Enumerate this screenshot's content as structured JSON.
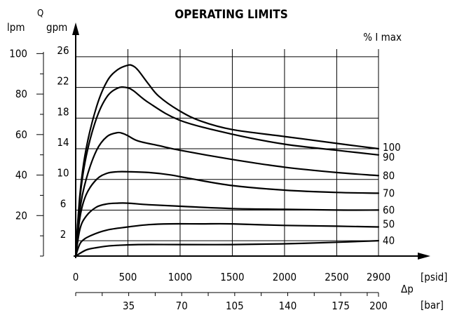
{
  "chart_data": {
    "type": "line",
    "title": "OPERATING LIMITS",
    "ylabel_symbol": "Q",
    "ylabel_lpm": "lpm",
    "ylabel_gpm": "gpm",
    "xlabel_symbol": "Δp",
    "x_unit_psid": "[psid]",
    "x_unit_bar": "[bar]",
    "series_legend_title": "% I max",
    "x_ticks_psid": [
      "0",
      "500",
      "1000",
      "1500",
      "2000",
      "2500",
      "2900"
    ],
    "x_ticks_bar": [
      "35",
      "70",
      "105",
      "140",
      "175",
      "200"
    ],
    "x_ticks_bar_values_psid": [
      507.6,
      1015.3,
      1522.9,
      2030.5,
      2538.2,
      2900
    ],
    "y_ticks_gpm": [
      "2",
      "6",
      "10",
      "14",
      "18",
      "22",
      "26"
    ],
    "y_ticks_lpm": [
      "20",
      "40",
      "60",
      "80",
      "100"
    ],
    "y_ticks_lpm_values_gpm": [
      5.28,
      10.57,
      15.85,
      21.13,
      26.42
    ],
    "xlim_psid": [
      0,
      2900
    ],
    "ylim_gpm": [
      0,
      27
    ],
    "grid": true,
    "series": [
      {
        "name": "100",
        "x": [
          0,
          40,
          100,
          200,
          300,
          400,
          500,
          550,
          600,
          700,
          800,
          1000,
          1200,
          1500,
          2000,
          2500,
          2900
        ],
        "y": [
          0,
          8,
          14,
          19.5,
          22.8,
          24.3,
          24.9,
          24.8,
          24.2,
          22.4,
          20.8,
          18.9,
          17.6,
          16.5,
          15.6,
          14.7,
          14.0
        ]
      },
      {
        "name": "90",
        "x": [
          0,
          40,
          100,
          200,
          300,
          400,
          480,
          550,
          700,
          1000,
          1500,
          2000,
          2500,
          2900
        ],
        "y": [
          0,
          7.5,
          13,
          18,
          20.8,
          21.9,
          22.0,
          21.6,
          20.0,
          17.7,
          15.9,
          14.6,
          13.8,
          13.2
        ]
      },
      {
        "name": "80",
        "x": [
          0,
          40,
          100,
          200,
          300,
          400,
          450,
          500,
          600,
          800,
          1000,
          1500,
          2000,
          2500,
          2900
        ],
        "y": [
          0,
          6,
          10,
          13.8,
          15.6,
          16.1,
          16.0,
          15.7,
          15.0,
          14.4,
          13.8,
          12.6,
          11.6,
          10.9,
          10.5
        ]
      },
      {
        "name": "70",
        "x": [
          0,
          40,
          100,
          200,
          300,
          400,
          500,
          700,
          900,
          1100,
          1500,
          2000,
          2500,
          2900
        ],
        "y": [
          0,
          5,
          8,
          10,
          10.8,
          11.0,
          11.0,
          10.9,
          10.6,
          10.1,
          9.2,
          8.6,
          8.3,
          8.2
        ]
      },
      {
        "name": "60",
        "x": [
          0,
          40,
          100,
          200,
          300,
          400,
          500,
          700,
          1000,
          1500,
          2000,
          2500,
          2900
        ],
        "y": [
          0,
          3.5,
          5.2,
          6.4,
          6.8,
          6.9,
          6.9,
          6.7,
          6.5,
          6.2,
          6.1,
          6.0,
          6.0
        ]
      },
      {
        "name": "50",
        "x": [
          0,
          50,
          150,
          300,
          500,
          700,
          900,
          1200,
          1500,
          2000,
          2500,
          2900
        ],
        "y": [
          0,
          1.8,
          2.7,
          3.4,
          3.8,
          4.1,
          4.2,
          4.2,
          4.2,
          4.0,
          3.9,
          3.8
        ]
      },
      {
        "name": "40",
        "x": [
          0,
          100,
          200,
          300,
          400,
          600,
          1000,
          1500,
          2000,
          2500,
          2900
        ],
        "y": [
          0,
          0.8,
          1.1,
          1.3,
          1.4,
          1.5,
          1.5,
          1.5,
          1.6,
          1.8,
          2.0
        ]
      }
    ]
  }
}
